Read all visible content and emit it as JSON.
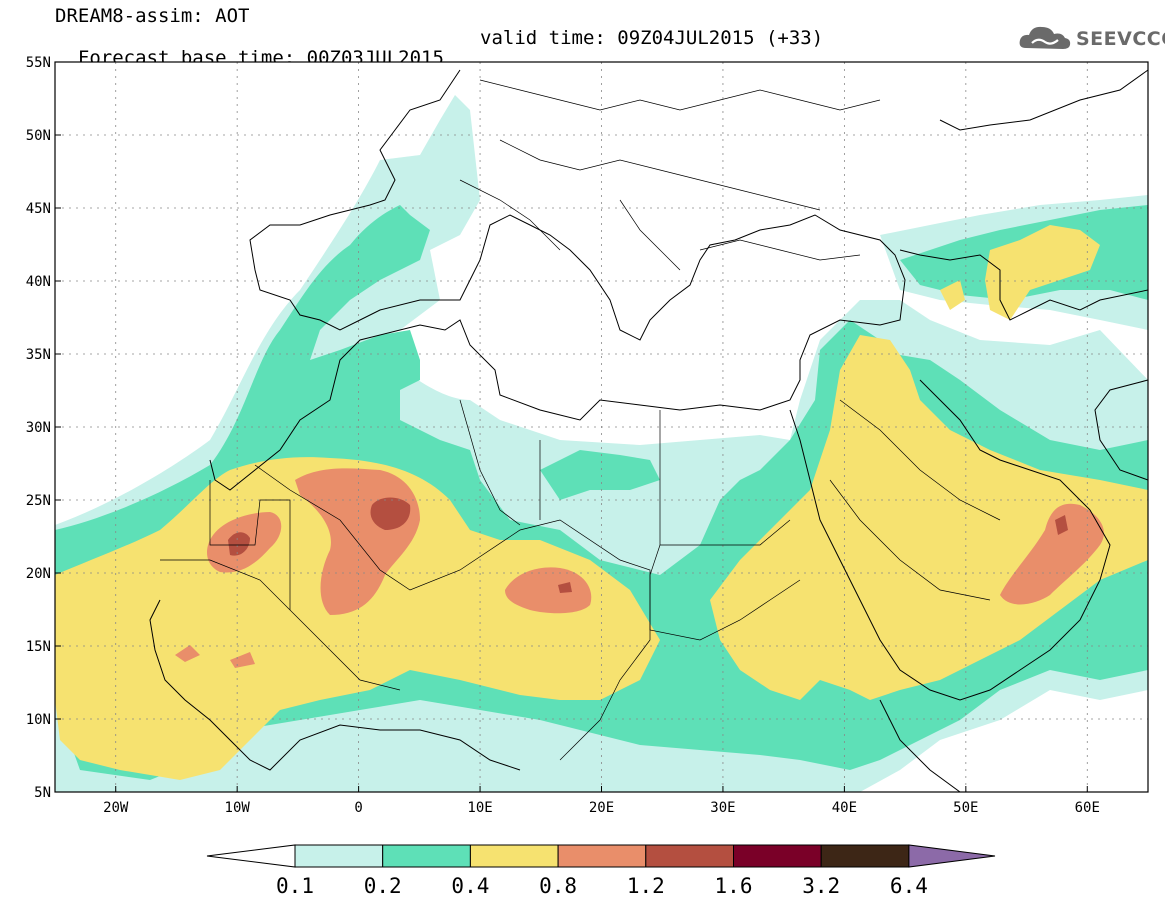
{
  "header": {
    "line1": "DREAM8-assim: AOT",
    "line2_left": "Forecast base time: 00Z03JUL2015",
    "line2_right": "valid time: 09Z04JUL2015 (+33)"
  },
  "logo": {
    "text": "SEEVCCC",
    "icon": "cloud-icon"
  },
  "map": {
    "lon_range": [
      -25,
      65
    ],
    "lat_range": [
      5,
      55
    ],
    "lat_ticks": [
      "55N",
      "50N",
      "45N",
      "40N",
      "35N",
      "30N",
      "25N",
      "20N",
      "15N",
      "10N",
      "5N"
    ],
    "lon_ticks": [
      "20W",
      "10W",
      "0",
      "10E",
      "20E",
      "30E",
      "40E",
      "50E",
      "60E"
    ],
    "grid": true
  },
  "colorbar": {
    "thresholds": [
      "0.1",
      "0.2",
      "0.4",
      "0.8",
      "1.2",
      "1.6",
      "3.2",
      "6.4"
    ],
    "colors": [
      "#ffffff",
      "#c7f1ea",
      "#5ee0b7",
      "#f6e270",
      "#e98e6a",
      "#b44f40",
      "#7a0028",
      "#3d2616",
      "#8c6aa8"
    ]
  }
}
